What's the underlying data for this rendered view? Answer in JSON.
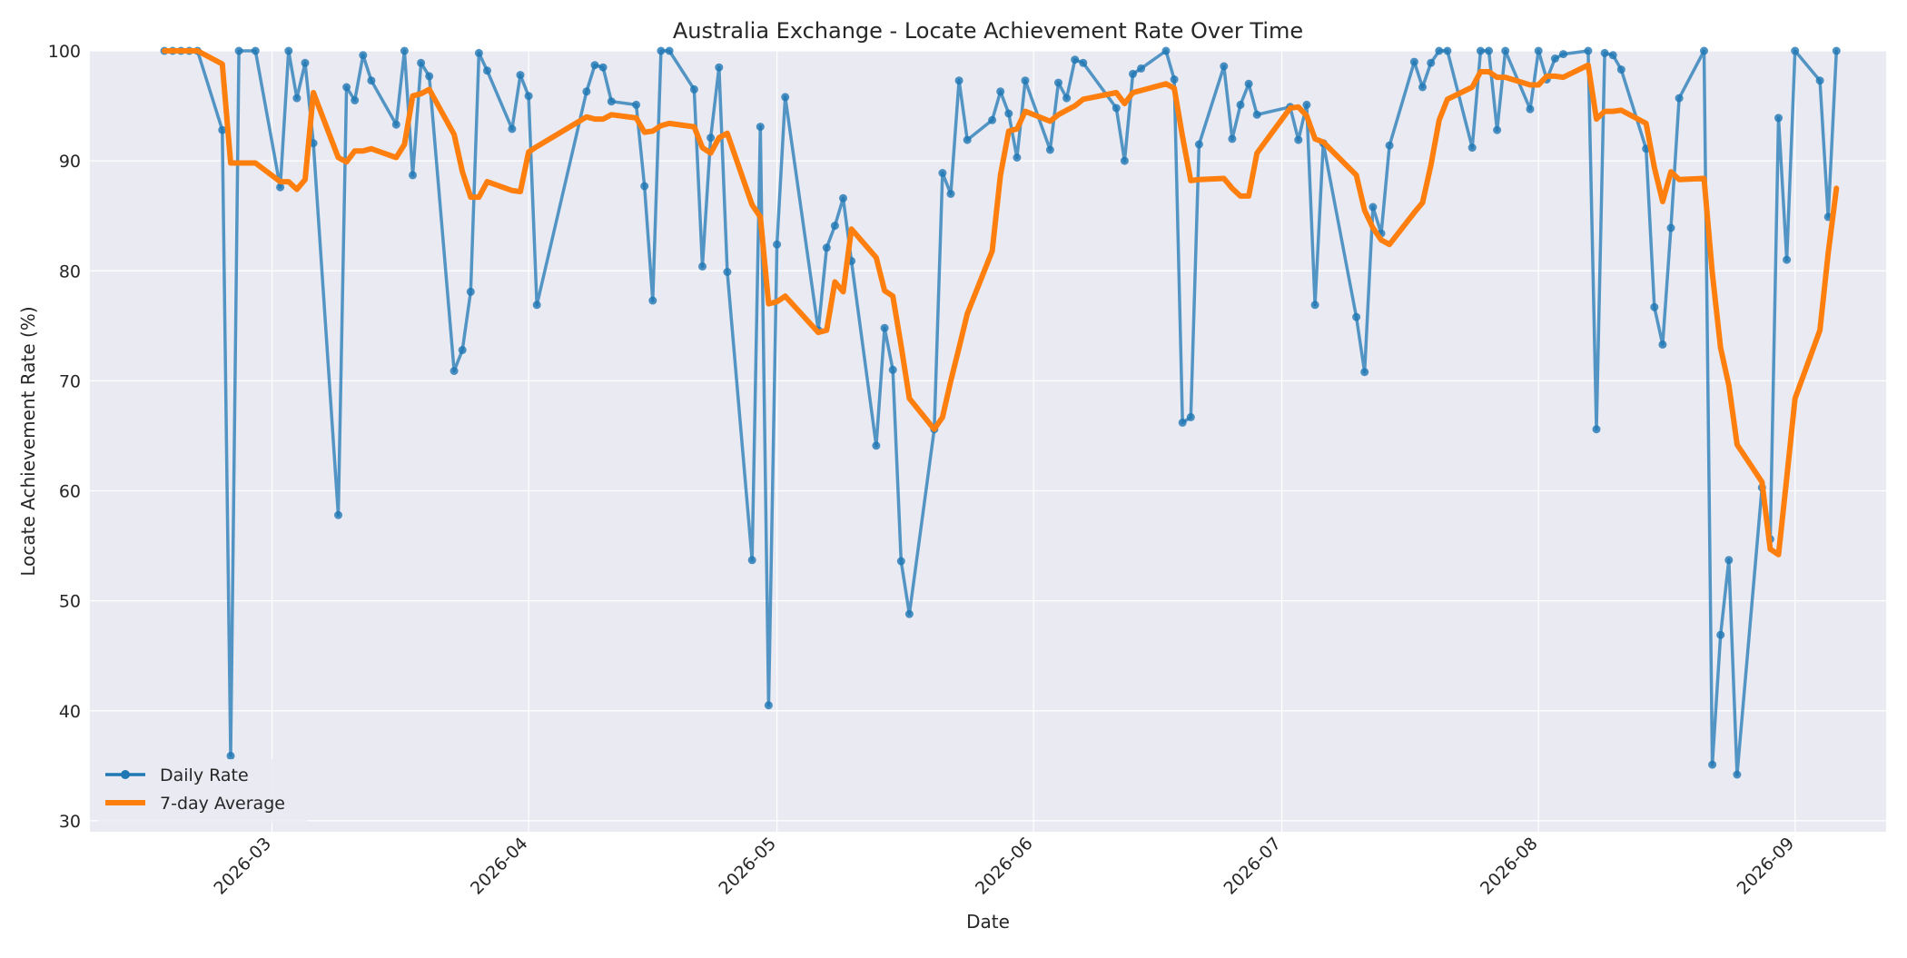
{
  "chart_data": {
    "type": "line",
    "title": "Australia Exchange - Locate Achievement Rate Over Time",
    "xlabel": "Date",
    "ylabel": "Locate Achievement Rate (%)",
    "xlim": [
      "2026-02-07",
      "2026-09-12"
    ],
    "ylim": [
      29,
      100
    ],
    "y_ticks": [
      30,
      40,
      50,
      60,
      70,
      80,
      90,
      100
    ],
    "x_ticks": [
      "2026-03",
      "2026-04",
      "2026-05",
      "2026-06",
      "2026-07",
      "2026-08",
      "2026-09"
    ],
    "grid": true,
    "legend_position": "lower-left",
    "series": [
      {
        "name": "Daily Rate",
        "color": "#1f77b4",
        "marker": "circle",
        "points": [
          [
            "2026-02-16",
            100.0
          ],
          [
            "2026-02-17",
            100.0
          ],
          [
            "2026-02-18",
            100.0
          ],
          [
            "2026-02-19",
            100.0
          ],
          [
            "2026-02-20",
            100.0
          ],
          [
            "2026-02-23",
            92.8
          ],
          [
            "2026-02-24",
            35.9
          ],
          [
            "2026-02-25",
            100.0
          ],
          [
            "2026-02-27",
            100.0
          ],
          [
            "2026-03-02",
            87.6
          ],
          [
            "2026-03-03",
            100.0
          ],
          [
            "2026-03-04",
            95.7
          ],
          [
            "2026-03-05",
            98.9
          ],
          [
            "2026-03-06",
            91.6
          ],
          [
            "2026-03-09",
            57.8
          ],
          [
            "2026-03-10",
            96.7
          ],
          [
            "2026-03-11",
            95.5
          ],
          [
            "2026-03-12",
            99.6
          ],
          [
            "2026-03-13",
            97.3
          ],
          [
            "2026-03-16",
            93.3
          ],
          [
            "2026-03-17",
            100.0
          ],
          [
            "2026-03-18",
            88.7
          ],
          [
            "2026-03-19",
            98.9
          ],
          [
            "2026-03-20",
            97.7
          ],
          [
            "2026-03-23",
            70.9
          ],
          [
            "2026-03-24",
            72.8
          ],
          [
            "2026-03-25",
            78.1
          ],
          [
            "2026-03-26",
            99.8
          ],
          [
            "2026-03-27",
            98.2
          ],
          [
            "2026-03-30",
            92.9
          ],
          [
            "2026-03-31",
            97.8
          ],
          [
            "2026-04-01",
            95.9
          ],
          [
            "2026-04-02",
            76.9
          ],
          [
            "2026-04-08",
            96.3
          ],
          [
            "2026-04-09",
            98.7
          ],
          [
            "2026-04-10",
            98.5
          ],
          [
            "2026-04-11",
            95.4
          ],
          [
            "2026-04-14",
            95.1
          ],
          [
            "2026-04-15",
            87.7
          ],
          [
            "2026-04-16",
            77.3
          ],
          [
            "2026-04-17",
            100.0
          ],
          [
            "2026-04-18",
            100.0
          ],
          [
            "2026-04-21",
            96.5
          ],
          [
            "2026-04-22",
            80.4
          ],
          [
            "2026-04-23",
            92.1
          ],
          [
            "2026-04-24",
            98.5
          ],
          [
            "2026-04-25",
            79.9
          ],
          [
            "2026-04-28",
            53.7
          ],
          [
            "2026-04-29",
            93.1
          ],
          [
            "2026-04-30",
            40.5
          ],
          [
            "2026-05-01",
            82.4
          ],
          [
            "2026-05-02",
            95.8
          ],
          [
            "2026-05-06",
            74.6
          ],
          [
            "2026-05-07",
            82.1
          ],
          [
            "2026-05-08",
            84.1
          ],
          [
            "2026-05-09",
            86.6
          ],
          [
            "2026-05-10",
            80.9
          ],
          [
            "2026-05-13",
            64.1
          ],
          [
            "2026-05-14",
            74.8
          ],
          [
            "2026-05-15",
            71.0
          ],
          [
            "2026-05-16",
            53.6
          ],
          [
            "2026-05-17",
            48.8
          ],
          [
            "2026-05-20",
            65.6
          ],
          [
            "2026-05-21",
            88.9
          ],
          [
            "2026-05-22",
            87.0
          ],
          [
            "2026-05-23",
            97.3
          ],
          [
            "2026-05-24",
            91.9
          ],
          [
            "2026-05-27",
            93.7
          ],
          [
            "2026-05-28",
            96.3
          ],
          [
            "2026-05-29",
            94.3
          ],
          [
            "2026-05-30",
            90.3
          ],
          [
            "2026-05-31",
            97.3
          ],
          [
            "2026-06-03",
            91.0
          ],
          [
            "2026-06-04",
            97.1
          ],
          [
            "2026-06-05",
            95.7
          ],
          [
            "2026-06-06",
            99.2
          ],
          [
            "2026-06-07",
            98.9
          ],
          [
            "2026-06-11",
            94.8
          ],
          [
            "2026-06-12",
            90.0
          ],
          [
            "2026-06-13",
            97.9
          ],
          [
            "2026-06-14",
            98.4
          ],
          [
            "2026-06-17",
            100.0
          ],
          [
            "2026-06-18",
            97.4
          ],
          [
            "2026-06-19",
            66.2
          ],
          [
            "2026-06-20",
            66.7
          ],
          [
            "2026-06-21",
            91.5
          ],
          [
            "2026-06-24",
            98.6
          ],
          [
            "2026-06-25",
            92.0
          ],
          [
            "2026-06-26",
            95.1
          ],
          [
            "2026-06-27",
            97.0
          ],
          [
            "2026-06-28",
            94.2
          ],
          [
            "2026-07-02",
            94.9
          ],
          [
            "2026-07-03",
            91.9
          ],
          [
            "2026-07-04",
            95.1
          ],
          [
            "2026-07-05",
            76.9
          ],
          [
            "2026-07-06",
            91.6
          ],
          [
            "2026-07-10",
            75.8
          ],
          [
            "2026-07-11",
            70.8
          ],
          [
            "2026-07-12",
            85.8
          ],
          [
            "2026-07-13",
            83.4
          ],
          [
            "2026-07-14",
            91.4
          ],
          [
            "2026-07-17",
            99.0
          ],
          [
            "2026-07-18",
            96.7
          ],
          [
            "2026-07-19",
            98.9
          ],
          [
            "2026-07-20",
            100.0
          ],
          [
            "2026-07-21",
            100.0
          ],
          [
            "2026-07-24",
            91.2
          ],
          [
            "2026-07-25",
            100.0
          ],
          [
            "2026-07-26",
            100.0
          ],
          [
            "2026-07-27",
            92.8
          ],
          [
            "2026-07-28",
            100.0
          ],
          [
            "2026-07-31",
            94.7
          ],
          [
            "2026-08-01",
            100.0
          ],
          [
            "2026-08-02",
            97.4
          ],
          [
            "2026-08-03",
            99.3
          ],
          [
            "2026-08-04",
            99.7
          ],
          [
            "2026-08-07",
            100.0
          ],
          [
            "2026-08-08",
            65.6
          ],
          [
            "2026-08-09",
            99.8
          ],
          [
            "2026-08-10",
            99.6
          ],
          [
            "2026-08-11",
            98.3
          ],
          [
            "2026-08-14",
            91.1
          ],
          [
            "2026-08-15",
            76.7
          ],
          [
            "2026-08-16",
            73.3
          ],
          [
            "2026-08-17",
            83.9
          ],
          [
            "2026-08-18",
            95.7
          ],
          [
            "2026-08-21",
            100.0
          ],
          [
            "2026-08-22",
            35.1
          ],
          [
            "2026-08-23",
            46.9
          ],
          [
            "2026-08-24",
            53.7
          ],
          [
            "2026-08-25",
            34.2
          ],
          [
            "2026-08-28",
            60.3
          ],
          [
            "2026-08-29",
            55.6
          ],
          [
            "2026-08-30",
            93.9
          ],
          [
            "2026-08-31",
            81.0
          ],
          [
            "2026-09-01",
            100.0
          ],
          [
            "2026-09-04",
            97.3
          ],
          [
            "2026-09-05",
            84.9
          ],
          [
            "2026-09-06",
            100.0
          ]
        ]
      },
      {
        "name": "7-day Average",
        "color": "#ff7f0e",
        "marker": "none",
        "points": [
          [
            "2026-02-16",
            100.0
          ],
          [
            "2026-02-17",
            100.0
          ],
          [
            "2026-02-18",
            100.0
          ],
          [
            "2026-02-19",
            100.0
          ],
          [
            "2026-02-20",
            100.0
          ],
          [
            "2026-02-23",
            98.8
          ],
          [
            "2026-02-24",
            89.8
          ],
          [
            "2026-02-25",
            89.8
          ],
          [
            "2026-02-27",
            89.8
          ],
          [
            "2026-03-02",
            88.1
          ],
          [
            "2026-03-03",
            88.1
          ],
          [
            "2026-03-04",
            87.4
          ],
          [
            "2026-03-05",
            88.3
          ],
          [
            "2026-03-06",
            96.2
          ],
          [
            "2026-03-09",
            90.3
          ],
          [
            "2026-03-10",
            89.9
          ],
          [
            "2026-03-11",
            90.9
          ],
          [
            "2026-03-12",
            90.9
          ],
          [
            "2026-03-13",
            91.1
          ],
          [
            "2026-03-16",
            90.3
          ],
          [
            "2026-03-17",
            91.5
          ],
          [
            "2026-03-18",
            95.9
          ],
          [
            "2026-03-19",
            96.1
          ],
          [
            "2026-03-20",
            96.5
          ],
          [
            "2026-03-23",
            92.4
          ],
          [
            "2026-03-24",
            89.0
          ],
          [
            "2026-03-25",
            86.7
          ],
          [
            "2026-03-26",
            86.7
          ],
          [
            "2026-03-27",
            88.1
          ],
          [
            "2026-03-30",
            87.3
          ],
          [
            "2026-03-31",
            87.2
          ],
          [
            "2026-04-01",
            90.8
          ],
          [
            "2026-04-02",
            91.3
          ],
          [
            "2026-04-08",
            94.0
          ],
          [
            "2026-04-09",
            93.8
          ],
          [
            "2026-04-10",
            93.8
          ],
          [
            "2026-04-11",
            94.2
          ],
          [
            "2026-04-14",
            93.9
          ],
          [
            "2026-04-15",
            92.6
          ],
          [
            "2026-04-16",
            92.7
          ],
          [
            "2026-04-17",
            93.2
          ],
          [
            "2026-04-18",
            93.4
          ],
          [
            "2026-04-21",
            93.1
          ],
          [
            "2026-04-22",
            91.2
          ],
          [
            "2026-04-23",
            90.7
          ],
          [
            "2026-04-24",
            92.1
          ],
          [
            "2026-04-25",
            92.5
          ],
          [
            "2026-04-28",
            86.0
          ],
          [
            "2026-04-29",
            84.9
          ],
          [
            "2026-04-30",
            77.0
          ],
          [
            "2026-05-01",
            77.2
          ],
          [
            "2026-05-02",
            77.7
          ],
          [
            "2026-05-06",
            74.4
          ],
          [
            "2026-05-07",
            74.6
          ],
          [
            "2026-05-08",
            79.0
          ],
          [
            "2026-05-09",
            78.1
          ],
          [
            "2026-05-10",
            83.8
          ],
          [
            "2026-05-13",
            81.2
          ],
          [
            "2026-05-14",
            78.2
          ],
          [
            "2026-05-15",
            77.7
          ],
          [
            "2026-05-16",
            73.2
          ],
          [
            "2026-05-17",
            68.4
          ],
          [
            "2026-05-20",
            65.6
          ],
          [
            "2026-05-21",
            66.7
          ],
          [
            "2026-05-22",
            70.0
          ],
          [
            "2026-05-23",
            73.0
          ],
          [
            "2026-05-24",
            76.1
          ],
          [
            "2026-05-27",
            81.8
          ],
          [
            "2026-05-28",
            88.7
          ],
          [
            "2026-05-29",
            92.7
          ],
          [
            "2026-05-30",
            92.9
          ],
          [
            "2026-05-31",
            94.5
          ],
          [
            "2026-06-03",
            93.6
          ],
          [
            "2026-06-04",
            94.2
          ],
          [
            "2026-06-05",
            94.6
          ],
          [
            "2026-06-06",
            95.0
          ],
          [
            "2026-06-07",
            95.6
          ],
          [
            "2026-06-11",
            96.2
          ],
          [
            "2026-06-12",
            95.2
          ],
          [
            "2026-06-13",
            96.2
          ],
          [
            "2026-06-14",
            96.4
          ],
          [
            "2026-06-17",
            97.0
          ],
          [
            "2026-06-18",
            96.6
          ],
          [
            "2026-06-19",
            92.2
          ],
          [
            "2026-06-20",
            88.2
          ],
          [
            "2026-06-21",
            88.3
          ],
          [
            "2026-06-24",
            88.4
          ],
          [
            "2026-06-25",
            87.5
          ],
          [
            "2026-06-26",
            86.8
          ],
          [
            "2026-06-27",
            86.8
          ],
          [
            "2026-06-28",
            90.7
          ],
          [
            "2026-07-02",
            94.8
          ],
          [
            "2026-07-03",
            94.9
          ],
          [
            "2026-07-04",
            94.1
          ],
          [
            "2026-07-05",
            92.0
          ],
          [
            "2026-07-06",
            91.7
          ],
          [
            "2026-07-10",
            88.7
          ],
          [
            "2026-07-11",
            85.5
          ],
          [
            "2026-07-12",
            83.9
          ],
          [
            "2026-07-13",
            82.8
          ],
          [
            "2026-07-14",
            82.4
          ],
          [
            "2026-07-17",
            85.3
          ],
          [
            "2026-07-18",
            86.2
          ],
          [
            "2026-07-19",
            89.6
          ],
          [
            "2026-07-20",
            93.7
          ],
          [
            "2026-07-21",
            95.6
          ],
          [
            "2026-07-24",
            96.7
          ],
          [
            "2026-07-25",
            98.1
          ],
          [
            "2026-07-26",
            98.1
          ],
          [
            "2026-07-27",
            97.6
          ],
          [
            "2026-07-28",
            97.6
          ],
          [
            "2026-07-31",
            96.9
          ],
          [
            "2026-08-01",
            96.9
          ],
          [
            "2026-08-02",
            97.7
          ],
          [
            "2026-08-03",
            97.7
          ],
          [
            "2026-08-04",
            97.6
          ],
          [
            "2026-08-07",
            98.7
          ],
          [
            "2026-08-08",
            93.8
          ],
          [
            "2026-08-09",
            94.5
          ],
          [
            "2026-08-10",
            94.5
          ],
          [
            "2026-08-11",
            94.6
          ],
          [
            "2026-08-14",
            93.4
          ],
          [
            "2026-08-15",
            89.4
          ],
          [
            "2026-08-16",
            86.3
          ],
          [
            "2026-08-17",
            89.0
          ],
          [
            "2026-08-18",
            88.3
          ],
          [
            "2026-08-21",
            88.4
          ],
          [
            "2026-08-22",
            79.8
          ],
          [
            "2026-08-23",
            73.0
          ],
          [
            "2026-08-24",
            69.6
          ],
          [
            "2026-08-25",
            64.2
          ],
          [
            "2026-08-28",
            60.8
          ],
          [
            "2026-08-29",
            54.7
          ],
          [
            "2026-08-30",
            54.2
          ],
          [
            "2026-08-31",
            61.2
          ],
          [
            "2026-09-01",
            68.4
          ],
          [
            "2026-09-04",
            74.6
          ],
          [
            "2026-09-05",
            81.6
          ],
          [
            "2026-09-06",
            87.5
          ]
        ]
      }
    ]
  }
}
